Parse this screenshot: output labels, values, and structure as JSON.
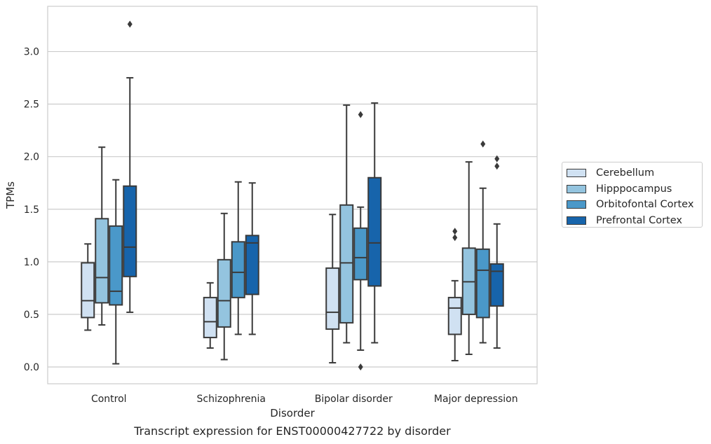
{
  "caption": "Transcript expression for ENST00000427722 by disorder",
  "chart_data": {
    "type": "box",
    "xlabel": "Disorder",
    "ylabel": "TPMs",
    "ylim": [
      -0.16,
      3.43
    ],
    "yticks": [
      "0.0",
      "0.5",
      "1.0",
      "1.5",
      "2.0",
      "2.5",
      "3.0"
    ],
    "grid": true,
    "legend_position": "right",
    "categories": [
      "Control",
      "Schizophrenia",
      "Bipolar disorder",
      "Major depression"
    ],
    "series": [
      {
        "name": "Cerebellum",
        "color": "#d0e1f2",
        "boxes": [
          {
            "whislo": 0.35,
            "q1": 0.47,
            "med": 0.63,
            "q3": 0.99,
            "whishi": 1.17,
            "fliers": []
          },
          {
            "whislo": 0.18,
            "q1": 0.28,
            "med": 0.43,
            "q3": 0.66,
            "whishi": 0.8,
            "fliers": []
          },
          {
            "whislo": 0.04,
            "q1": 0.36,
            "med": 0.52,
            "q3": 0.94,
            "whishi": 1.45,
            "fliers": []
          },
          {
            "whislo": 0.06,
            "q1": 0.31,
            "med": 0.56,
            "q3": 0.66,
            "whishi": 0.82,
            "fliers": [
              1.23,
              1.29
            ]
          }
        ]
      },
      {
        "name": "Hipppocampus",
        "color": "#94c4df",
        "boxes": [
          {
            "whislo": 0.4,
            "q1": 0.61,
            "med": 0.85,
            "q3": 1.41,
            "whishi": 2.09,
            "fliers": []
          },
          {
            "whislo": 0.07,
            "q1": 0.38,
            "med": 0.63,
            "q3": 1.02,
            "whishi": 1.46,
            "fliers": []
          },
          {
            "whislo": 0.23,
            "q1": 0.42,
            "med": 0.99,
            "q3": 1.54,
            "whishi": 2.49,
            "fliers": []
          },
          {
            "whislo": 0.12,
            "q1": 0.5,
            "med": 0.81,
            "q3": 1.13,
            "whishi": 1.95,
            "fliers": []
          }
        ]
      },
      {
        "name": "Orbitofontal Cortex",
        "color": "#4a98c9",
        "boxes": [
          {
            "whislo": 0.03,
            "q1": 0.59,
            "med": 0.72,
            "q3": 1.34,
            "whishi": 1.78,
            "fliers": []
          },
          {
            "whislo": 0.31,
            "q1": 0.66,
            "med": 0.9,
            "q3": 1.19,
            "whishi": 1.76,
            "fliers": []
          },
          {
            "whislo": 0.16,
            "q1": 0.83,
            "med": 1.04,
            "q3": 1.32,
            "whishi": 1.52,
            "fliers": [
              2.4,
              0.0
            ]
          },
          {
            "whislo": 0.23,
            "q1": 0.47,
            "med": 0.92,
            "q3": 1.12,
            "whishi": 1.7,
            "fliers": [
              2.12
            ]
          }
        ]
      },
      {
        "name": "Prefrontal Cortex",
        "color": "#1764ab",
        "boxes": [
          {
            "whislo": 0.52,
            "q1": 0.86,
            "med": 1.14,
            "q3": 1.72,
            "whishi": 2.75,
            "fliers": [
              3.26
            ]
          },
          {
            "whislo": 0.31,
            "q1": 0.69,
            "med": 1.18,
            "q3": 1.25,
            "whishi": 1.75,
            "fliers": []
          },
          {
            "whislo": 0.23,
            "q1": 0.77,
            "med": 1.18,
            "q3": 1.8,
            "whishi": 2.51,
            "fliers": []
          },
          {
            "whislo": 0.18,
            "q1": 0.58,
            "med": 0.91,
            "q3": 0.98,
            "whishi": 1.36,
            "fliers": [
              1.91,
              1.98
            ]
          }
        ]
      }
    ]
  }
}
